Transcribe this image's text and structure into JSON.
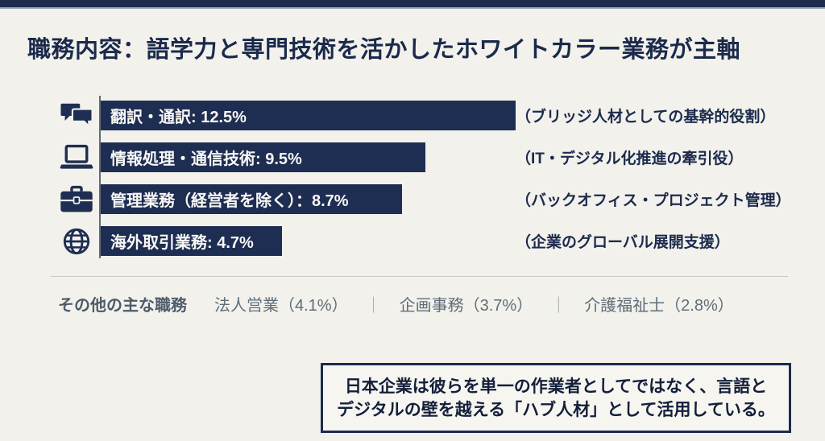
{
  "page": {
    "title": "職務内容：語学力と専門技術を活かしたホワイトカラー業務が主軸"
  },
  "chart_data": {
    "type": "bar",
    "orientation": "horizontal",
    "unit": "%",
    "title": "職務内容：語学力と専門技術を活かしたホワイトカラー業務が主軸",
    "categories": [
      "翻訳・通訳",
      "情報処理・通信技術",
      "管理業務（経営者を除く）",
      "海外取引業務"
    ],
    "values": [
      12.5,
      9.5,
      8.7,
      4.7
    ],
    "bar_labels": [
      "翻訳・通訳: 12.5%",
      "情報処理・通信技術: 9.5%",
      "管理業務（経営者を除く）：8.7%",
      "海外取引業務: 4.7%"
    ],
    "annotations": [
      "（ブリッジ人材としての基幹的役割）",
      "（IT・デジタル化推進の牽引役）",
      "（バックオフィス・プロジェクト管理）",
      "（企業のグローバル展開支援）"
    ],
    "icons": [
      "chat-bubbles",
      "laptop",
      "briefcase",
      "globe"
    ],
    "bar_color": "#1e2d52",
    "xlim": [
      0,
      13
    ],
    "grid": false,
    "legend": false
  },
  "others": {
    "label": "その他の主な職務",
    "separator": "｜",
    "items": [
      "法人営業（4.1%）",
      "企画事務（3.7%）",
      "介護福祉士（2.8%）"
    ]
  },
  "callout": {
    "line1": "日本企業は彼らを単一の作業者としてではなく、言語と",
    "line2": "デジタルの壁を越える「ハブ人材」として活用している。"
  },
  "colors": {
    "background": "#f2f1eb",
    "navy": "#1e2d52",
    "title_text": "#1b2a4c",
    "bar_text": "#f7f7f5",
    "others_label": "#4c5b6a",
    "others_item": "#5f6d7a",
    "callout_border": "#1b2b4e",
    "callout_text": "#131f3a"
  }
}
